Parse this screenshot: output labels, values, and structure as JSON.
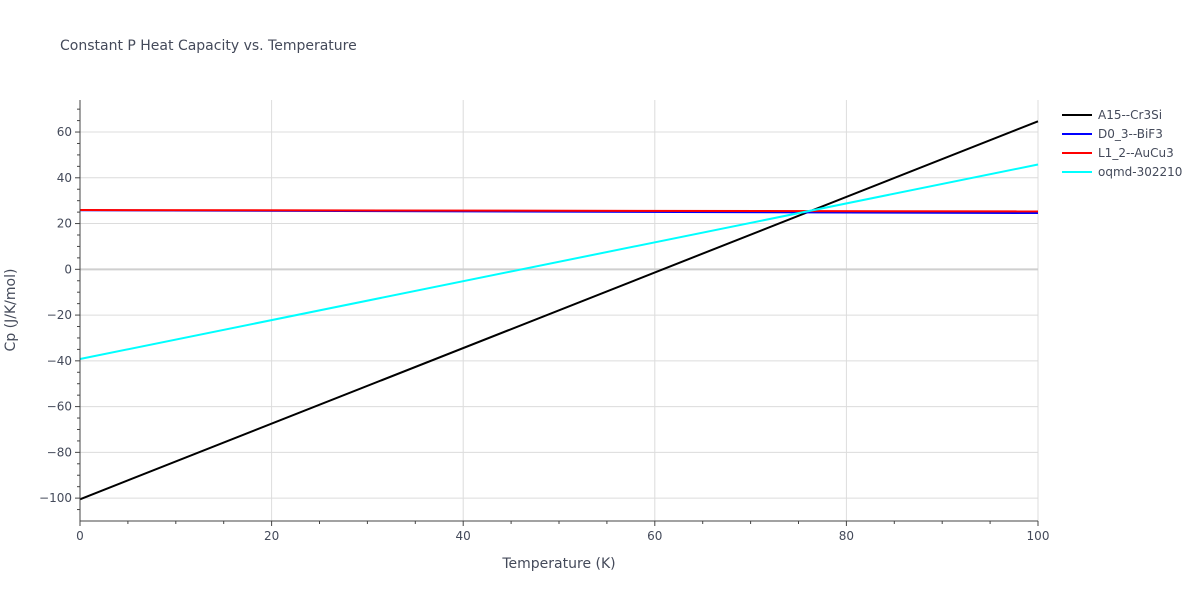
{
  "chart_data": {
    "type": "line",
    "title": "Constant P Heat Capacity vs. Temperature",
    "xlabel": "Temperature (K)",
    "ylabel": "Cp (J/K/mol)",
    "xlim": [
      0,
      100
    ],
    "ylim": [
      -110,
      74
    ],
    "x_ticks": [
      0,
      20,
      40,
      60,
      80,
      100
    ],
    "y_ticks": [
      -100,
      -80,
      -60,
      -40,
      -20,
      0,
      20,
      40,
      60
    ],
    "y_tick_labels": [
      "−100",
      "−80",
      "−60",
      "−40",
      "−20",
      "0",
      "20",
      "40",
      "60"
    ],
    "grid": true,
    "legend_position": "top-right (outside plot)",
    "series": [
      {
        "name": "A15--Cr3Si",
        "color": "#000000",
        "x": [
          0,
          100
        ],
        "y": [
          -100.5,
          64.7
        ]
      },
      {
        "name": "D0_3--BiF3",
        "color": "#0000ff",
        "x": [
          0,
          100
        ],
        "y": [
          25.8,
          24.6
        ]
      },
      {
        "name": "L1_2--AuCu3",
        "color": "#ff0000",
        "x": [
          0,
          100
        ],
        "y": [
          25.9,
          25.3
        ]
      },
      {
        "name": "oqmd-302210",
        "color": "#00ffff",
        "x": [
          0,
          100
        ],
        "y": [
          -39.2,
          45.8
        ]
      }
    ]
  }
}
